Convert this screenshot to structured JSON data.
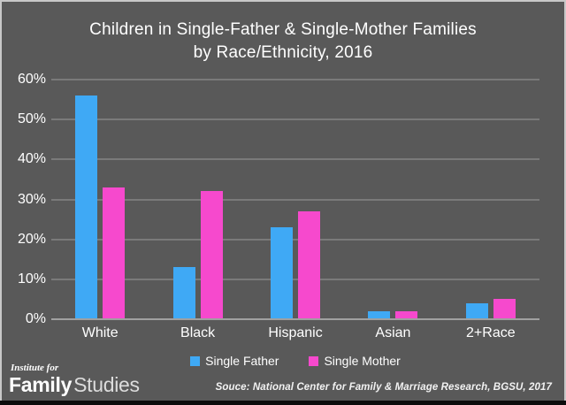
{
  "title": {
    "line1": "Children in Single-Father & Single-Mother Families",
    "line2": "by Race/Ethnicity, 2016"
  },
  "chart_data": {
    "type": "bar",
    "categories": [
      "White",
      "Black",
      "Hispanic",
      "Asian",
      "2+Race"
    ],
    "series": [
      {
        "name": "Single Father",
        "color": "#3FA9F5",
        "values": [
          56,
          13,
          23,
          2,
          4
        ]
      },
      {
        "name": "Single Mother",
        "color": "#F649CD",
        "values": [
          33,
          32,
          27,
          2,
          5
        ]
      }
    ],
    "title": "Children in Single-Father & Single-Mother Families by Race/Ethnicity, 2016",
    "xlabel": "",
    "ylabel": "",
    "ylim": [
      0,
      60
    ],
    "ytick_step": 10,
    "ytick_labels": [
      "0%",
      "10%",
      "20%",
      "30%",
      "40%",
      "50%",
      "60%"
    ],
    "grid": true,
    "legend_position": "bottom-center"
  },
  "footer": {
    "logo_line1": "Institute for",
    "logo_bold": "Family",
    "logo_light": "Studies",
    "source": "Souce: National Center for Family & Marriage Research, BGSU, 2017"
  },
  "colors": {
    "background": "#595959",
    "gridline": "#7A7A7A",
    "axis_line": "#A0A0A0",
    "text": "#FFFFFF",
    "single_father": "#3FA9F5",
    "single_mother": "#F649CD",
    "frame_border": "#C8C8C8",
    "bottom_strip": "#0C0C0C"
  }
}
